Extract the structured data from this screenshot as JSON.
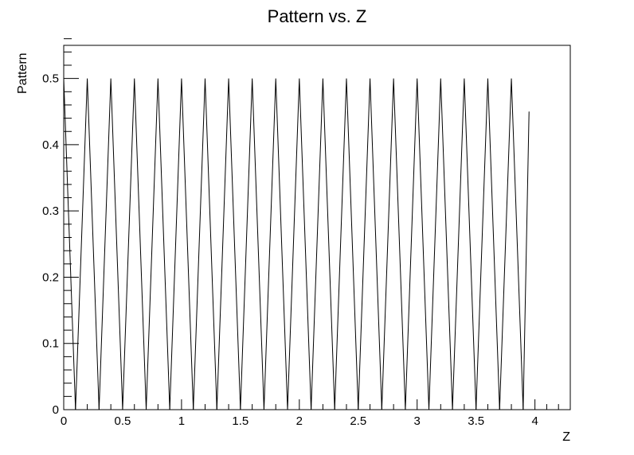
{
  "chart_data": {
    "type": "line",
    "title": "Pattern vs. Z",
    "xlabel": "Z",
    "ylabel": "Pattern",
    "xlim": [
      0,
      4.3
    ],
    "ylim": [
      0,
      0.55
    ],
    "xticks": [
      "0",
      "0.5",
      "1",
      "1.5",
      "2",
      "2.5",
      "3",
      "3.5",
      "4"
    ],
    "yticks": [
      "0",
      "0.1",
      "0.2",
      "0.3",
      "0.4",
      "0.5"
    ],
    "grid": false,
    "legend": "none",
    "line_color": "#000000",
    "series": [
      {
        "x": [
          0,
          0.1,
          0.2,
          0.3,
          0.4,
          0.5,
          0.6,
          0.7,
          0.8,
          0.9,
          1.0,
          1.1,
          1.2,
          1.3,
          1.4,
          1.5,
          1.6,
          1.7,
          1.8,
          1.9,
          2.0,
          2.1,
          2.2,
          2.3,
          2.4,
          2.5,
          2.6,
          2.7,
          2.8,
          2.9,
          3.0,
          3.1,
          3.2,
          3.3,
          3.4,
          3.5,
          3.6,
          3.7,
          3.8,
          3.9,
          3.95
        ],
        "y": [
          0.5,
          0,
          0.5,
          0,
          0.5,
          0,
          0.5,
          0,
          0.5,
          0,
          0.5,
          0,
          0.5,
          0,
          0.5,
          0,
          0.5,
          0,
          0.5,
          0,
          0.5,
          0,
          0.5,
          0,
          0.5,
          0,
          0.5,
          0,
          0.5,
          0,
          0.5,
          0,
          0.5,
          0,
          0.5,
          0,
          0.5,
          0,
          0.5,
          0,
          0.45
        ]
      }
    ]
  }
}
